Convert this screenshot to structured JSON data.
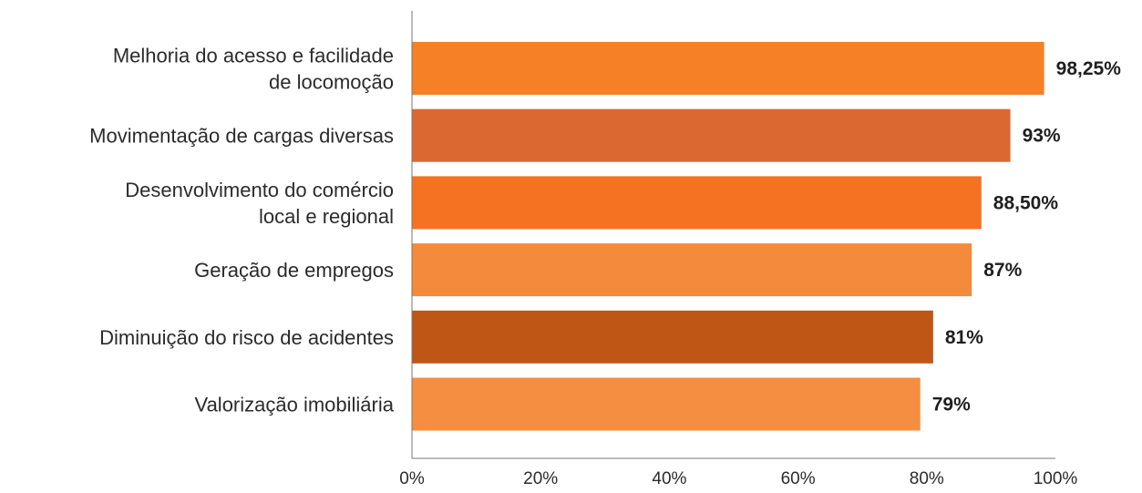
{
  "chart_data": {
    "type": "bar",
    "orientation": "horizontal",
    "title": "",
    "xlabel": "",
    "ylabel": "",
    "categories": [
      [
        "Melhoria do acesso e facilidade",
        "de locomoção"
      ],
      [
        "Movimentação de cargas diversas"
      ],
      [
        "Desenvolvimento do comércio",
        "local e regional"
      ],
      [
        "Geração de empregos"
      ],
      [
        "Diminuição do risco de acidentes"
      ],
      [
        "Valorização imobiliária"
      ]
    ],
    "values": [
      98.25,
      93,
      88.5,
      87,
      81,
      79
    ],
    "value_labels": [
      "98,25%",
      "93%",
      "88,50%",
      "87%",
      "81%",
      "79%"
    ],
    "bar_colors": [
      "#F58025",
      "#DA6830",
      "#F47222",
      "#F48A3C",
      "#BF5616",
      "#F58E40"
    ],
    "xlim": [
      0,
      100
    ],
    "xticks": [
      0,
      20,
      40,
      60,
      80,
      100
    ],
    "xtick_labels": [
      "0%",
      "20%",
      "40%",
      "60%",
      "80%",
      "100%"
    ],
    "grid": false,
    "legend": "none"
  }
}
